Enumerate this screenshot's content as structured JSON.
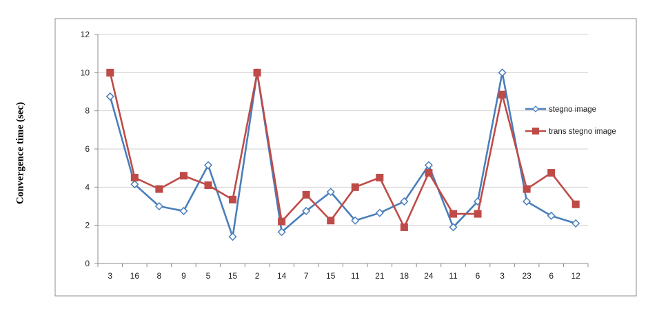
{
  "chart_data": {
    "type": "line",
    "title": "",
    "xlabel": "",
    "ylabel": "Convergence  time (sec)",
    "categories": [
      "3",
      "16",
      "8",
      "9",
      "5",
      "15",
      "2",
      "14",
      "7",
      "15",
      "11",
      "21",
      "18",
      "24",
      "11",
      "6",
      "3",
      "23",
      "6",
      "12"
    ],
    "ylim": [
      0,
      12
    ],
    "yticks": [
      "0",
      "2",
      "4",
      "6",
      "8",
      "10",
      "12"
    ],
    "grid": true,
    "legend_position": "right",
    "series": [
      {
        "name": "stegno image",
        "color": "#4a7ebb",
        "marker": "diamond",
        "values": [
          8.75,
          4.15,
          3.0,
          2.75,
          5.15,
          1.4,
          10.0,
          1.65,
          2.75,
          3.75,
          2.25,
          2.65,
          3.25,
          5.15,
          1.9,
          3.25,
          10.0,
          3.25,
          2.5,
          2.1
        ]
      },
      {
        "name": "trans stegno image",
        "color": "#be4b48",
        "marker": "square",
        "values": [
          10.0,
          4.5,
          3.9,
          4.6,
          4.1,
          3.35,
          10.0,
          2.2,
          3.6,
          2.25,
          4.0,
          4.5,
          1.9,
          4.75,
          2.6,
          2.6,
          8.85,
          3.9,
          4.75,
          3.1
        ]
      }
    ]
  }
}
